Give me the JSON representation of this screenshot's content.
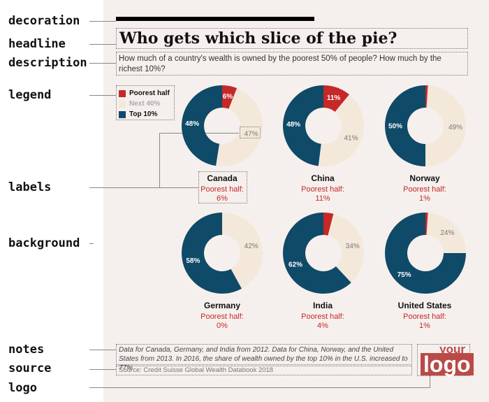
{
  "callouts": {
    "decoration": "decoration",
    "headline": "headline",
    "description": "description",
    "legend": "legend",
    "labels": "labels",
    "background": "background",
    "notes": "notes",
    "source": "source",
    "logo": "logo"
  },
  "headline": "Who gets which slice of the pie?",
  "description": "How much of a country's wealth is owned by the poorest 50% of people? How much by the richest 10%?",
  "legend": [
    {
      "label": "Poorest half",
      "color": "#c62828"
    },
    {
      "label": "Next 40%",
      "color": "#f3e8da"
    },
    {
      "label": "Top 10%",
      "color": "#0f4a68"
    }
  ],
  "poorest_label": "Poorest half:",
  "notes": "Data for Canada, Germany, and India from 2012. Data for China, Norway, and the United States from 2013. In 2016, the share of wealth owned by the top 10% in the U.S. increased to 77%.",
  "source": "Source: Credit Suisse Global Wealth Databook 2018",
  "logo": {
    "top": "your",
    "main": "logo"
  },
  "chart_data": {
    "type": "pie",
    "variant": "donut",
    "segments": [
      "Poorest half",
      "Next 40%",
      "Top 10%"
    ],
    "colors": [
      "#c62828",
      "#f3e8da",
      "#0f4a68"
    ],
    "charts": [
      {
        "country": "Canada",
        "values": [
          6,
          47,
          48
        ],
        "labels": [
          "6%",
          "47%",
          "48%"
        ],
        "poorest_text": "6%"
      },
      {
        "country": "China",
        "values": [
          11,
          41,
          48
        ],
        "labels": [
          "11%",
          "41%",
          "48%"
        ],
        "poorest_text": "11%"
      },
      {
        "country": "Norway",
        "values": [
          1,
          49,
          50
        ],
        "labels": [
          "",
          "49%",
          "50%"
        ],
        "poorest_text": "1%"
      },
      {
        "country": "Germany",
        "values": [
          0,
          42,
          58
        ],
        "labels": [
          "",
          "42%",
          "58%"
        ],
        "poorest_text": "0%"
      },
      {
        "country": "India",
        "values": [
          4,
          34,
          62
        ],
        "labels": [
          "",
          "34%",
          "62%"
        ],
        "poorest_text": "4%"
      },
      {
        "country": "United States",
        "values": [
          1,
          24,
          75
        ],
        "labels": [
          "",
          "24%",
          "75%"
        ],
        "poorest_text": "1%"
      }
    ]
  }
}
